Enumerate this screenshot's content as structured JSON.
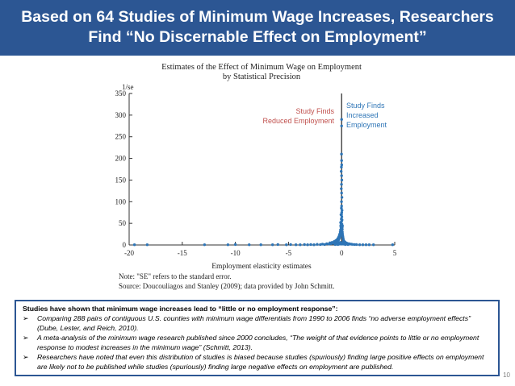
{
  "header": {
    "line1": "Based on 64 Studies of Minimum Wage Increases, Researchers",
    "line2": "Find “No Discernable Effect on Employment”"
  },
  "colors": {
    "banner": "#2c5693",
    "points": "#2e75b6",
    "reduced_label": "#c0504d",
    "increased_label": "#2e75b6"
  },
  "chart_data": {
    "type": "scatter",
    "title": "Estimates of the Effect of Minimum Wage on Employment",
    "subtitle": "by Statistical Precision",
    "xlabel": "Employment elasticity estimates",
    "ylabel": "1/se",
    "xlim": [
      -20,
      5
    ],
    "ylim": [
      0,
      350
    ],
    "x_ticks": [
      -20,
      -15,
      -10,
      -5,
      0,
      5
    ],
    "y_ticks": [
      0,
      50,
      100,
      150,
      200,
      250,
      300,
      350
    ],
    "grid": false,
    "reference_line_x": 0,
    "annotations": {
      "reduced": [
        "Study Finds",
        "Reduced Employment"
      ],
      "increased": [
        "Study Finds",
        "Increased",
        "Employment"
      ]
    },
    "points": [
      [
        -19.5,
        0.5
      ],
      [
        -18.3,
        0.5
      ],
      [
        -12.9,
        0.5
      ],
      [
        -10.7,
        0.5
      ],
      [
        -10.0,
        1
      ],
      [
        -8.7,
        0.5
      ],
      [
        -7.6,
        0.5
      ],
      [
        -6.5,
        0.5
      ],
      [
        -6.0,
        1
      ],
      [
        -5.2,
        0.5
      ],
      [
        -4.8,
        1
      ],
      [
        -4.3,
        0.5
      ],
      [
        -3.9,
        0.5
      ],
      [
        -3.5,
        1
      ],
      [
        -3.2,
        0.5
      ],
      [
        -2.9,
        1
      ],
      [
        -2.6,
        0.5
      ],
      [
        -2.3,
        1.5
      ],
      [
        -2.0,
        1
      ],
      [
        -1.8,
        2
      ],
      [
        -1.6,
        1
      ],
      [
        -1.4,
        3
      ],
      [
        -1.2,
        2
      ],
      [
        -1.1,
        5
      ],
      [
        -1.0,
        3
      ],
      [
        -0.9,
        6
      ],
      [
        -0.8,
        4
      ],
      [
        -0.7,
        8
      ],
      [
        -0.6,
        5
      ],
      [
        -0.55,
        10
      ],
      [
        -0.5,
        7
      ],
      [
        -0.45,
        12
      ],
      [
        -0.4,
        9
      ],
      [
        -0.35,
        15
      ],
      [
        -0.3,
        11
      ],
      [
        -0.28,
        18
      ],
      [
        -0.25,
        14
      ],
      [
        -0.22,
        22
      ],
      [
        -0.2,
        16
      ],
      [
        -0.18,
        25
      ],
      [
        -0.15,
        20
      ],
      [
        -0.13,
        30
      ],
      [
        -0.12,
        24
      ],
      [
        -0.1,
        35
      ],
      [
        -0.08,
        28
      ],
      [
        -0.07,
        42
      ],
      [
        -0.06,
        33
      ],
      [
        -0.05,
        50
      ],
      [
        -0.04,
        38
      ],
      [
        -0.03,
        60
      ],
      [
        -0.02,
        45
      ],
      [
        -0.01,
        70
      ],
      [
        0.0,
        55
      ],
      [
        -0.02,
        85
      ],
      [
        -0.01,
        100
      ],
      [
        0.0,
        120
      ],
      [
        -0.01,
        140
      ],
      [
        0.0,
        160
      ],
      [
        -0.02,
        180
      ],
      [
        0.0,
        195
      ],
      [
        -0.01,
        210
      ],
      [
        0.0,
        90
      ],
      [
        0.01,
        75
      ],
      [
        0.02,
        65
      ],
      [
        0.03,
        48
      ],
      [
        0.04,
        58
      ],
      [
        0.05,
        40
      ],
      [
        0.06,
        36
      ],
      [
        0.07,
        30
      ],
      [
        0.08,
        26
      ],
      [
        0.1,
        22
      ],
      [
        0.12,
        19
      ],
      [
        0.14,
        16
      ],
      [
        0.16,
        13
      ],
      [
        0.18,
        11
      ],
      [
        0.2,
        9
      ],
      [
        0.25,
        8
      ],
      [
        0.3,
        7
      ],
      [
        0.35,
        6
      ],
      [
        0.4,
        5
      ],
      [
        0.45,
        4
      ],
      [
        0.5,
        4
      ],
      [
        0.6,
        3
      ],
      [
        0.7,
        3
      ],
      [
        0.8,
        2
      ],
      [
        0.9,
        2
      ],
      [
        1.0,
        1.5
      ],
      [
        1.2,
        1
      ],
      [
        1.4,
        1
      ],
      [
        1.7,
        0.5
      ],
      [
        2.0,
        0.5
      ],
      [
        2.3,
        0.5
      ],
      [
        2.6,
        0.5
      ],
      [
        3.0,
        0.5
      ],
      [
        4.8,
        0.5
      ],
      [
        0.0,
        290
      ],
      [
        0.0,
        275
      ],
      [
        -0.05,
        2
      ],
      [
        0.05,
        2
      ],
      [
        -0.1,
        3
      ],
      [
        0.1,
        3
      ],
      [
        -0.15,
        4
      ],
      [
        0.15,
        4
      ],
      [
        -0.2,
        2
      ],
      [
        0.2,
        2
      ],
      [
        -0.3,
        3
      ],
      [
        0.3,
        3
      ],
      [
        -0.4,
        2
      ],
      [
        0.4,
        2
      ],
      [
        -0.25,
        5
      ],
      [
        0.25,
        5
      ],
      [
        -0.12,
        6
      ],
      [
        0.12,
        6
      ],
      [
        -0.35,
        1
      ],
      [
        0.35,
        1
      ],
      [
        -0.6,
        1
      ],
      [
        0.6,
        1
      ],
      [
        -0.08,
        45
      ],
      [
        0.03,
        110
      ],
      [
        -0.03,
        130
      ],
      [
        0.02,
        150
      ],
      [
        -0.04,
        170
      ],
      [
        0.01,
        185
      ],
      [
        -0.06,
        70
      ],
      [
        0.04,
        80
      ],
      [
        -0.09,
        52
      ],
      [
        0.08,
        44
      ]
    ]
  },
  "notes": {
    "note": "Note: \"SE\" refers to the standard error.",
    "source": "Source: Doucouliagos and Stanley (2009); data provided by John Schmitt."
  },
  "callout": {
    "lead": "Studies have shown that minimum wage increases lead to “little or no employment response”:",
    "bullet_mark": "➢",
    "bullets": [
      "Comparing 288 pairs of contiguous U.S. counties with minimum wage differentials from 1990 to 2006 finds “no adverse employment effects” (Dube, Lester, and Reich, 2010).",
      "A meta-analysis of the minimum wage research published since 2000 concludes, “The weight of that evidence points to little or no employment response to modest increases in the minimum wage” (Schmitt, 2013).",
      "Researchers have noted that even this distribution of studies is biased because studies (spuriously) finding large positive effects on employment are likely not to be published while studies (spuriously) finding large negative effects on employment are published."
    ]
  },
  "slide_number": "10"
}
